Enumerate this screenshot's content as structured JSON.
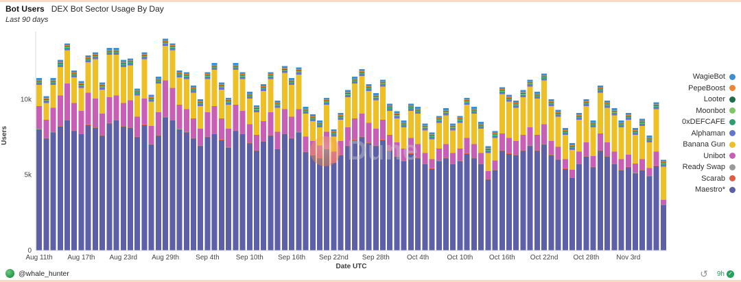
{
  "header": {
    "title": "Bot Users",
    "subtitle": "DEX Bot Sector Usage By Day",
    "timeframe": "Last 90 days"
  },
  "watermark": {
    "text": "Dune"
  },
  "footer": {
    "author": "@whale_hunter",
    "age": "9h"
  },
  "chart_data": {
    "type": "bar",
    "variant": "stacked",
    "title": "Bot Users",
    "subtitle": "DEX Bot Sector Usage By Day",
    "timeframe": "Last 90 days",
    "xlabel": "Date UTC",
    "ylabel": "Users",
    "ylim": [
      0,
      14500
    ],
    "grid": false,
    "legend_position": "right",
    "y_ticks": [
      {
        "value": 0,
        "label": "0"
      },
      {
        "value": 5000,
        "label": "5k"
      },
      {
        "value": 10000,
        "label": "10k"
      }
    ],
    "x_ticks": [
      {
        "index": 0,
        "label": "Aug 11th"
      },
      {
        "index": 6,
        "label": "Aug 17th"
      },
      {
        "index": 12,
        "label": "Aug 23rd"
      },
      {
        "index": 18,
        "label": "Aug 29th"
      },
      {
        "index": 24,
        "label": "Sep 4th"
      },
      {
        "index": 30,
        "label": "Sep 10th"
      },
      {
        "index": 36,
        "label": "Sep 16th"
      },
      {
        "index": 42,
        "label": "Sep 22nd"
      },
      {
        "index": 48,
        "label": "Sep 28th"
      },
      {
        "index": 54,
        "label": "Oct 4th"
      },
      {
        "index": 60,
        "label": "Oct 10th"
      },
      {
        "index": 66,
        "label": "Oct 16th"
      },
      {
        "index": 72,
        "label": "Oct 22nd"
      },
      {
        "index": 78,
        "label": "Oct 28th"
      },
      {
        "index": 84,
        "label": "Nov 3rd"
      }
    ],
    "dates": [
      "Aug 11",
      "Aug 12",
      "Aug 13",
      "Aug 14",
      "Aug 15",
      "Aug 16",
      "Aug 17",
      "Aug 18",
      "Aug 19",
      "Aug 20",
      "Aug 21",
      "Aug 22",
      "Aug 23",
      "Aug 24",
      "Aug 25",
      "Aug 26",
      "Aug 27",
      "Aug 28",
      "Aug 29",
      "Aug 30",
      "Aug 31",
      "Sep 1",
      "Sep 2",
      "Sep 3",
      "Sep 4",
      "Sep 5",
      "Sep 6",
      "Sep 7",
      "Sep 8",
      "Sep 9",
      "Sep 10",
      "Sep 11",
      "Sep 12",
      "Sep 13",
      "Sep 14",
      "Sep 15",
      "Sep 16",
      "Sep 17",
      "Sep 18",
      "Sep 19",
      "Sep 20",
      "Sep 21",
      "Sep 22",
      "Sep 23",
      "Sep 24",
      "Sep 25",
      "Sep 26",
      "Sep 27",
      "Sep 28",
      "Sep 29",
      "Sep 30",
      "Oct 1",
      "Oct 2",
      "Oct 3",
      "Oct 4",
      "Oct 5",
      "Oct 6",
      "Oct 7",
      "Oct 8",
      "Oct 9",
      "Oct 10",
      "Oct 11",
      "Oct 12",
      "Oct 13",
      "Oct 14",
      "Oct 15",
      "Oct 16",
      "Oct 17",
      "Oct 18",
      "Oct 19",
      "Oct 20",
      "Oct 21",
      "Oct 22",
      "Oct 23",
      "Oct 24",
      "Oct 25",
      "Oct 26",
      "Oct 27",
      "Oct 28",
      "Oct 29",
      "Oct 30",
      "Oct 31",
      "Nov 1",
      "Nov 2",
      "Nov 3",
      "Nov 4",
      "Nov 5",
      "Nov 6",
      "Nov 7",
      "Nov 8"
    ],
    "stacking_note": "series listed in legend order (top to bottom); stacked bottom-to-top in reverse of this order, Maestro* at bottom",
    "series": [
      {
        "name": "WagieBot",
        "color": "#3d8fd1",
        "values": 130
      },
      {
        "name": "PepeBoost",
        "color": "#ee8434",
        "values": 70
      },
      {
        "name": "Looter",
        "color": "#1d6f4c",
        "values": 45
      },
      {
        "name": "Moonbot",
        "color": "#7ec564",
        "values": 55
      },
      {
        "name": "0xDEFCAFE",
        "color": "#2f9e6e",
        "values": 40
      },
      {
        "name": "Alphaman",
        "color": "#6377cf",
        "values": 120
      },
      {
        "name": "Banana Gun",
        "color": "#edc028",
        "values": [
          1400,
          1100,
          1500,
          1900,
          2200,
          1700,
          1500,
          2000,
          2600,
          1600,
          2800,
          2700,
          2400,
          2300,
          1400,
          2600,
          1600,
          1900,
          2300,
          2500,
          1800,
          2000,
          1700,
          1500,
          2200,
          2400,
          1900,
          1600,
          2300,
          2100,
          1700,
          1500,
          2000,
          2200,
          1600,
          2400,
          2100,
          2300,
          1500,
          1300,
          1200,
          1800,
          1000,
          1400,
          2000,
          2300,
          2500,
          2100,
          1900,
          2200,
          1600,
          1600,
          1400,
          1800,
          2000,
          1500,
          1300,
          1700,
          1900,
          1500,
          1700,
          2200,
          2000,
          1600,
          1200,
          1500,
          2600,
          2400,
          2200,
          2500,
          2700,
          2400,
          2900,
          2300,
          2000,
          1600,
          1300,
          2100,
          2400,
          1900,
          2700,
          2300,
          2400,
          2100,
          2300,
          1900,
          2200,
          1700,
          2800,
          2200
        ]
      },
      {
        "name": "Unibot",
        "color": "#c95fb4",
        "values": [
          1500,
          1200,
          1600,
          2000,
          2400,
          1800,
          1500,
          2100,
          1900,
          1400,
          1700,
          1600,
          1500,
          1800,
          1300,
          1700,
          1200,
          1500,
          2400,
          2100,
          1600,
          1500,
          1300,
          1100,
          1600,
          1800,
          1400,
          1200,
          1700,
          1500,
          1200,
          1000,
          1300,
          1500,
          1100,
          1600,
          1400,
          1500,
          1000,
          900,
          800,
          1100,
          700,
          900,
          1200,
          1400,
          1500,
          1300,
          1100,
          1300,
          1000,
          900,
          800,
          1000,
          900,
          700,
          600,
          800,
          900,
          700,
          800,
          1000,
          900,
          700,
          500,
          600,
          1100,
          1000,
          900,
          1000,
          1200,
          1000,
          1300,
          900,
          800,
          600,
          500,
          800,
          900,
          700,
          1100,
          900,
          800,
          700,
          800,
          600,
          700,
          500,
          900,
          300
        ]
      },
      {
        "name": "Ready Swap",
        "color": "#9a9a9a",
        "values": 25
      },
      {
        "name": "Scarab",
        "color": "#e25b43",
        "values": 30
      },
      {
        "name": "Maestro*",
        "color": "#5d5fa7",
        "values": [
          8000,
          7400,
          7800,
          8200,
          8600,
          7900,
          7700,
          8300,
          8100,
          7600,
          8400,
          8600,
          8200,
          8100,
          7500,
          8300,
          7000,
          7600,
          8800,
          8600,
          8000,
          7800,
          7400,
          6900,
          7500,
          7700,
          7300,
          6800,
          7900,
          7700,
          7100,
          6600,
          7200,
          7600,
          6700,
          7700,
          7400,
          7800,
          6500,
          6300,
          6100,
          6700,
          5800,
          6300,
          6900,
          7300,
          7500,
          7100,
          6900,
          7300,
          6600,
          6200,
          5900,
          6400,
          6100,
          5700,
          5400,
          5900,
          6100,
          5700,
          5900,
          6400,
          6100,
          5700,
          4700,
          5300,
          6600,
          6400,
          6300,
          6600,
          6900,
          6600,
          7000,
          6300,
          6000,
          5400,
          4800,
          5700,
          6200,
          5500,
          6600,
          6200,
          5700,
          5300,
          5500,
          5100,
          5300,
          4900,
          5600,
          3000
        ]
      }
    ]
  }
}
